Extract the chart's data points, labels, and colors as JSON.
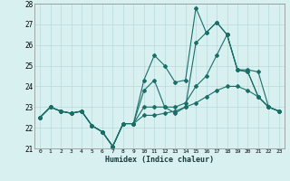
{
  "xlabel": "Humidex (Indice chaleur)",
  "x": [
    0,
    1,
    2,
    3,
    4,
    5,
    6,
    7,
    8,
    9,
    10,
    11,
    12,
    13,
    14,
    15,
    16,
    17,
    18,
    19,
    20,
    21,
    22,
    23
  ],
  "series": [
    [
      22.5,
      23.0,
      22.8,
      22.7,
      22.8,
      22.1,
      21.8,
      21.1,
      22.2,
      22.2,
      24.3,
      25.5,
      25.0,
      24.2,
      24.3,
      27.8,
      26.6,
      27.1,
      26.5,
      24.8,
      24.7,
      23.5,
      23.0,
      22.8
    ],
    [
      22.5,
      23.0,
      22.8,
      22.7,
      22.8,
      22.1,
      21.8,
      21.1,
      22.2,
      22.2,
      23.8,
      24.3,
      23.0,
      22.7,
      23.0,
      26.1,
      26.6,
      27.1,
      26.5,
      24.8,
      24.7,
      23.5,
      23.0,
      22.8
    ],
    [
      22.5,
      23.0,
      22.8,
      22.7,
      22.8,
      22.1,
      21.8,
      21.1,
      22.2,
      22.2,
      23.0,
      23.0,
      23.0,
      23.0,
      23.2,
      24.0,
      24.5,
      25.5,
      26.5,
      24.8,
      24.8,
      24.7,
      23.0,
      22.8
    ],
    [
      22.5,
      23.0,
      22.8,
      22.7,
      22.8,
      22.1,
      21.8,
      21.1,
      22.2,
      22.2,
      22.6,
      22.6,
      22.7,
      22.8,
      23.0,
      23.2,
      23.5,
      23.8,
      24.0,
      24.0,
      23.8,
      23.5,
      23.0,
      22.8
    ]
  ],
  "ylim": [
    21,
    28
  ],
  "xlim": [
    -0.5,
    23.5
  ],
  "yticks": [
    21,
    22,
    23,
    24,
    25,
    26,
    27,
    28
  ],
  "xticks": [
    0,
    1,
    2,
    3,
    4,
    5,
    6,
    7,
    8,
    9,
    10,
    11,
    12,
    13,
    14,
    15,
    16,
    17,
    18,
    19,
    20,
    21,
    22,
    23
  ],
  "line_color": "#1a6e68",
  "bg_color": "#d8f0f0",
  "grid_color": "#b8dada",
  "marker": "D",
  "marker_size": 2.0,
  "linewidth": 0.8
}
